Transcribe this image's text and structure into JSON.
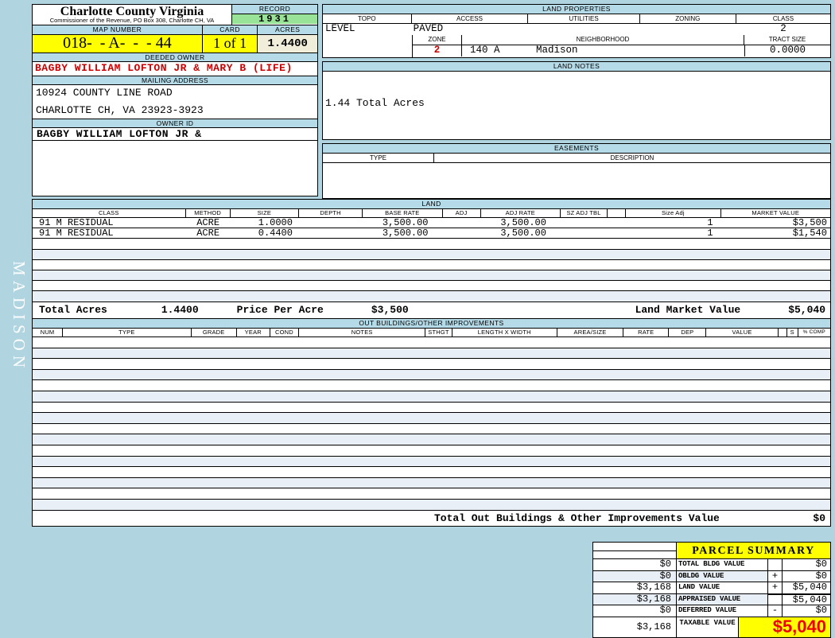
{
  "colors": {
    "page_blue": "#b0d4e0",
    "header_blue": "#b5dbe8",
    "record_green": "#99e399",
    "highlight_yellow": "#ffff00",
    "acres_cream": "#f0eedb",
    "owner_red": "#cc0000",
    "taxable_red": "#ee0000",
    "stripe": "#e9eff6"
  },
  "sidebar": {
    "district": "MADISON"
  },
  "header": {
    "county": "Charlotte County Virginia",
    "commissioner": "Commissioner of the Revenue, PO Box 308, Charlotte CH, VA",
    "record_label": "RECORD",
    "record_value": "1931",
    "map_number_label": "MAP NUMBER",
    "map_number": "018-  - A-  -  - 44",
    "card_label": "CARD",
    "card_value": "1 of 1",
    "acres_label": "ACRES",
    "acres_value": "1.4400",
    "deeded_owner_label": "DEEDED OWNER",
    "deeded_owner": "BAGBY WILLIAM LOFTON JR & MARY B (LIFE)",
    "mailing_address_label": "MAILING ADDRESS",
    "address_line1": "10924 COUNTY LINE ROAD",
    "address_line2": "CHARLOTTE CH, VA 23923-3923",
    "owner_id_label": "OWNER ID",
    "owner_id": "BAGBY WILLIAM LOFTON JR &"
  },
  "land_properties": {
    "title": "LAND PROPERTIES",
    "columns": [
      "TOPO",
      "ACCESS",
      "UTILITIES",
      "ZONING",
      "CLASS"
    ],
    "topo": "LEVEL",
    "access": "PAVED",
    "utilities": "",
    "zoning": "",
    "class_value": "2",
    "zone_label": "ZONE",
    "zone_value": "2",
    "neighborhood_label": "NEIGHBORHOOD",
    "neighborhood_code": "140 A",
    "neighborhood_name": "Madison",
    "tract_size_label": "TRACT SIZE",
    "tract_size_value": "0.0000"
  },
  "land_notes": {
    "title": "LAND NOTES",
    "note": "1.44 Total Acres"
  },
  "easements": {
    "title": "EASEMENTS",
    "type_label": "TYPE",
    "description_label": "DESCRIPTION"
  },
  "land": {
    "title": "LAND",
    "columns": [
      "CLASS",
      "METHOD",
      "SIZE",
      "DEPTH",
      "BASE RATE",
      "ADJ",
      "ADJ RATE",
      "SZ ADJ TBL",
      "",
      "Size Adj",
      "MARKET VALUE"
    ],
    "rows": [
      {
        "class": "91 M RESIDUAL",
        "method": "ACRE",
        "size": "1.0000",
        "depth": "",
        "base_rate": "3,500.00",
        "adj": "",
        "adj_rate": "3,500.00",
        "sz_adj_tbl": "",
        "size_adj": "1",
        "market_value": "$3,500"
      },
      {
        "class": "91 M RESIDUAL",
        "method": "ACRE",
        "size": "0.4400",
        "depth": "",
        "base_rate": "3,500.00",
        "adj": "",
        "adj_rate": "3,500.00",
        "sz_adj_tbl": "",
        "size_adj": "1",
        "market_value": "$1,540"
      }
    ],
    "totals": {
      "total_acres_label": "Total Acres",
      "total_acres": "1.4400",
      "price_per_acre_label": "Price Per Acre",
      "price_per_acre": "$3,500",
      "market_value_label": "Land Market Value",
      "market_value": "$5,040"
    }
  },
  "out_buildings": {
    "title": "OUT BUILDINGS/OTHER IMPROVEMENTS",
    "columns": [
      "NUM",
      "TYPE",
      "GRADE",
      "YEAR",
      "COND",
      "NOTES",
      "STHGT",
      "LENGTH X WIDTH",
      "AREA/SIZE",
      "RATE",
      "DEP",
      "VALUE",
      "",
      "S",
      "% COMP"
    ],
    "total_label": "Total Out Buildings & Other Improvements Value",
    "total_value": "$0"
  },
  "parcel_summary": {
    "title": "PARCEL SUMMARY",
    "rows": [
      {
        "prior": "$0",
        "label": "TOTAL BLDG VALUE",
        "op": "",
        "value": "$0"
      },
      {
        "prior": "$0",
        "label": "OBLDG VALUE",
        "op": "+",
        "value": "$0"
      },
      {
        "prior": "$3,168",
        "label": "LAND VALUE",
        "op": "+",
        "value": "$5,040"
      },
      {
        "prior": "$3,168",
        "label": "APPRAISED VALUE",
        "op": "",
        "value": "$5,040"
      },
      {
        "prior": "$0",
        "label": "DEFERRED VALUE",
        "op": "-",
        "value": "$0"
      }
    ],
    "taxable": {
      "prior": "$3,168",
      "label": "TAXABLE VALUE",
      "value": "$5,040"
    }
  }
}
